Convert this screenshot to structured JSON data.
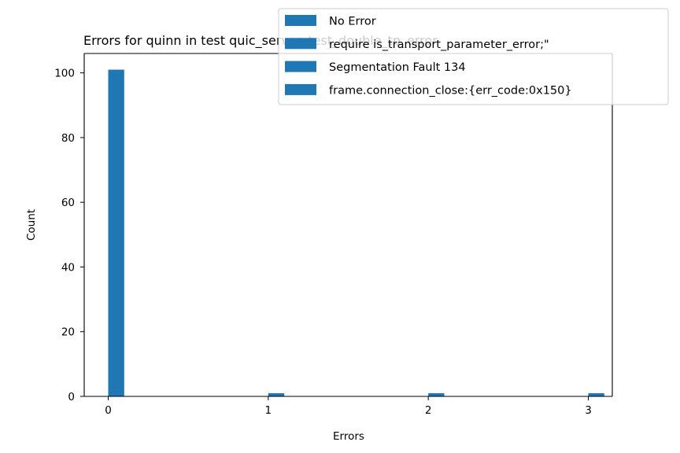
{
  "chart_data": {
    "type": "bar",
    "title": "Errors for quinn in test quic_server_test_double_tp_error",
    "xlabel": "Errors",
    "ylabel": "Count",
    "xlim": [
      -0.15,
      3.15
    ],
    "ylim": [
      0,
      106
    ],
    "x_ticks": [
      "0",
      "1",
      "2",
      "3"
    ],
    "y_ticks": [
      "0",
      "20",
      "40",
      "60",
      "80",
      "100"
    ],
    "bar_width": 0.1,
    "grid": false,
    "legend_position": "top-right",
    "series": [
      {
        "name": "No Error",
        "x": 0,
        "value": 101,
        "color": "#1f77b4"
      },
      {
        "name": "require is_transport_parameter_error;\"",
        "x": 1,
        "value": 1,
        "color": "#1f77b4"
      },
      {
        "name": "Segmentation Fault 134",
        "x": 2,
        "value": 1,
        "color": "#1f77b4"
      },
      {
        "name": "frame.connection_close:{err_code:0x150}",
        "x": 3,
        "value": 1,
        "color": "#1f77b4"
      }
    ]
  }
}
